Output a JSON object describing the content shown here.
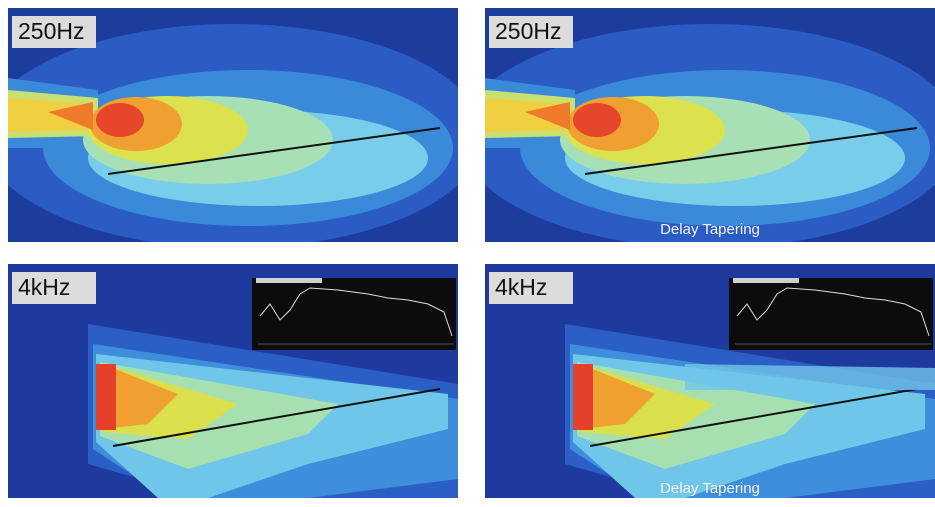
{
  "panels": [
    {
      "label": "250Hz"
    },
    {
      "label": "250Hz",
      "caption": "Delay Tapering"
    },
    {
      "label": "4kHz"
    },
    {
      "label": "4kHz",
      "caption": "Delay Tapering"
    }
  ]
}
